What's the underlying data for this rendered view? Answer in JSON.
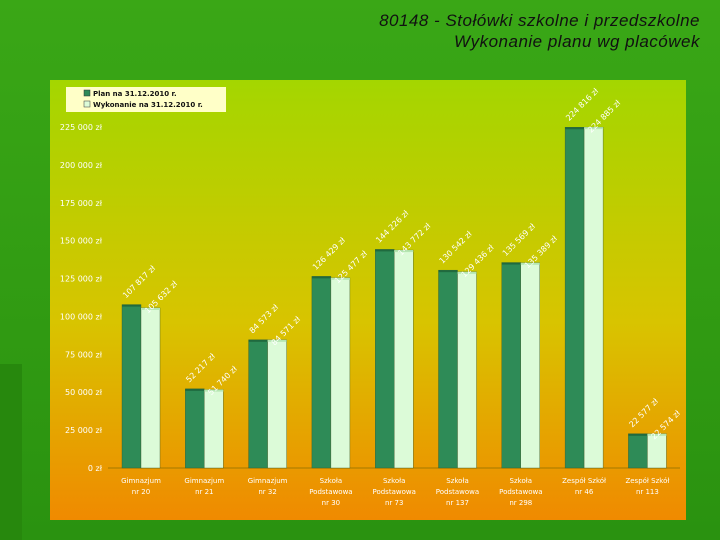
{
  "title_line1": "80148 - Stołówki szkolne i przedszkolne",
  "title_line2": "Wykonanie planu wg placówek",
  "colors": {
    "plan": "#2e8b57",
    "plan_top": "#1f6a3f",
    "wykonanie": "#dcfbd8",
    "wykonanie_top": "#b5e6b1",
    "legend_bg": "#ffffc8",
    "plot_top": "#a4d600",
    "plot_bottom": "#f08a00"
  },
  "chart_data": {
    "type": "bar",
    "title": "",
    "xlabel": "",
    "ylabel": "",
    "ylim": [
      0,
      225000
    ],
    "grid": false,
    "legend_placement": "top-left",
    "y_ticks": [
      {
        "value": 0,
        "label": "0 zł"
      },
      {
        "value": 25000,
        "label": "25 000 zł"
      },
      {
        "value": 50000,
        "label": "50 000 zł"
      },
      {
        "value": 75000,
        "label": "75 000 zł"
      },
      {
        "value": 100000,
        "label": "100 000 zł"
      },
      {
        "value": 125000,
        "label": "125 000 zł"
      },
      {
        "value": 150000,
        "label": "150 000 zł"
      },
      {
        "value": 175000,
        "label": "175 000 zł"
      },
      {
        "value": 200000,
        "label": "200 000 zł"
      },
      {
        "value": 225000,
        "label": "225 000 zł"
      }
    ],
    "categories": [
      [
        "Gimnazjum",
        "nr 20"
      ],
      [
        "Gimnazjum",
        "nr 21"
      ],
      [
        "Gimnazjum",
        "nr 32"
      ],
      [
        "Szkoła",
        "Podstawowa",
        "nr 30"
      ],
      [
        "Szkoła",
        "Podstawowa",
        "nr 73"
      ],
      [
        "Szkoła",
        "Podstawowa",
        "nr 137"
      ],
      [
        "Szkoła",
        "Podstawowa",
        "nr 298"
      ],
      [
        "Zespół Szkół",
        "nr 46"
      ],
      [
        "Zespół Szkół",
        "nr 113"
      ]
    ],
    "series": [
      {
        "name": "Plan na 31.12.2010 r.",
        "values": [
          107817,
          52217,
          84573,
          126429,
          144226,
          130542,
          135569,
          224816,
          22577
        ],
        "labels": [
          "107 817 zł",
          "52 217 zł",
          "84 573 zł",
          "126 429 zł",
          "144 226 zł",
          "130 542 zł",
          "135 569 zł",
          "224 816 zł",
          "22 577 zł"
        ]
      },
      {
        "name": "Wykonanie na 31.12.2010 r.",
        "values": [
          105632,
          51740,
          84571,
          125477,
          143772,
          129436,
          135389,
          224885,
          22574
        ],
        "labels": [
          "105 632 zł",
          "51 740 zł",
          "84 571 zł",
          "125 477 zł",
          "143 772 zł",
          "129 436 zł",
          "135 389 zł",
          "224 885 zł",
          "22 574 zł"
        ]
      }
    ]
  }
}
